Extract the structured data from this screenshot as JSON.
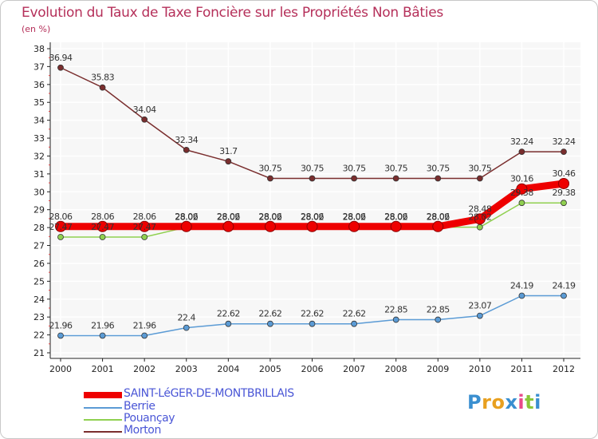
{
  "title": "Evolution du Taux de Taxe Foncière sur les Propriétés Non Bâties",
  "subtitle": "(en %)",
  "logo": {
    "letters": [
      "P",
      "r",
      "o",
      "x",
      "i",
      "t",
      "i"
    ],
    "colors": [
      "#3a8fd0",
      "#e8a020",
      "#e8a020",
      "#3a8fd0",
      "#e84a8a",
      "#8ac63a",
      "#3a8fd0"
    ]
  },
  "legend": [
    {
      "label": "SAINT-LéGER-DE-MONTBRILLAIS",
      "color": "#ee0000"
    },
    {
      "label": "Berrie",
      "color": "#5b9bd5"
    },
    {
      "label": "Pouançay",
      "color": "#90d050"
    },
    {
      "label": "Morton",
      "color": "#7a2e2e"
    }
  ],
  "chart_data": {
    "type": "line",
    "title": "Evolution du Taux de Taxe Foncière sur les Propriétés Non Bâties",
    "ylabel": "(en %)",
    "xlabel": "",
    "ylim": [
      21,
      38
    ],
    "yticks": [
      21,
      22,
      23,
      24,
      25,
      26,
      27,
      28,
      29,
      30,
      31,
      32,
      33,
      34,
      35,
      36,
      37,
      38
    ],
    "categories": [
      "2000",
      "2001",
      "2002",
      "2003",
      "2004",
      "2005",
      "2006",
      "2007",
      "2008",
      "2009",
      "2010",
      "2011",
      "2012"
    ],
    "series": [
      {
        "name": "Morton",
        "color": "#7a2e2e",
        "values": [
          36.94,
          35.83,
          34.04,
          32.34,
          31.7,
          30.75,
          30.75,
          30.75,
          30.75,
          30.75,
          30.75,
          32.24,
          32.24
        ],
        "labels": [
          "36.94",
          "35.83",
          "34.04",
          "32.34",
          "31.7",
          "30.75",
          "30.75",
          "30.75",
          "30.75",
          "30.75",
          "30.75",
          "32.24",
          "32.24"
        ]
      },
      {
        "name": "Berrie",
        "color": "#5b9bd5",
        "values": [
          21.96,
          21.96,
          21.96,
          22.4,
          22.62,
          22.62,
          22.62,
          22.62,
          22.85,
          22.85,
          23.07,
          24.19,
          24.19
        ],
        "labels": [
          "21.96",
          "21.96",
          "21.96",
          "22.4",
          "22.62",
          "22.62",
          "22.62",
          "22.62",
          "22.85",
          "22.85",
          "23.07",
          "24.19",
          "24.19"
        ]
      },
      {
        "name": "Pouançay",
        "color": "#90d050",
        "values": [
          27.47,
          27.47,
          27.47,
          28.02,
          28.02,
          28.02,
          28.02,
          28.02,
          28.02,
          28.02,
          28.02,
          29.38,
          29.38
        ],
        "labels": [
          "27.47",
          "27.47",
          "27.47",
          "28.02",
          "28.02",
          "28.02",
          "28.02",
          "28.02",
          "28.02",
          "28.02",
          "28.02",
          "29.38",
          "29.38"
        ]
      },
      {
        "name": "SAINT-LéGER-DE-MONTBRILLAIS",
        "color": "#ee0000",
        "values": [
          28.06,
          28.06,
          28.06,
          28.06,
          28.06,
          28.06,
          28.06,
          28.06,
          28.06,
          28.06,
          28.48,
          30.16,
          30.46
        ],
        "labels": [
          "28.06",
          "28.06",
          "28.06",
          "28.06",
          "28.06",
          "28.06",
          "28.06",
          "28.06",
          "28.06",
          "28.06",
          "28.48",
          "30.16",
          "30.46"
        ]
      }
    ]
  }
}
